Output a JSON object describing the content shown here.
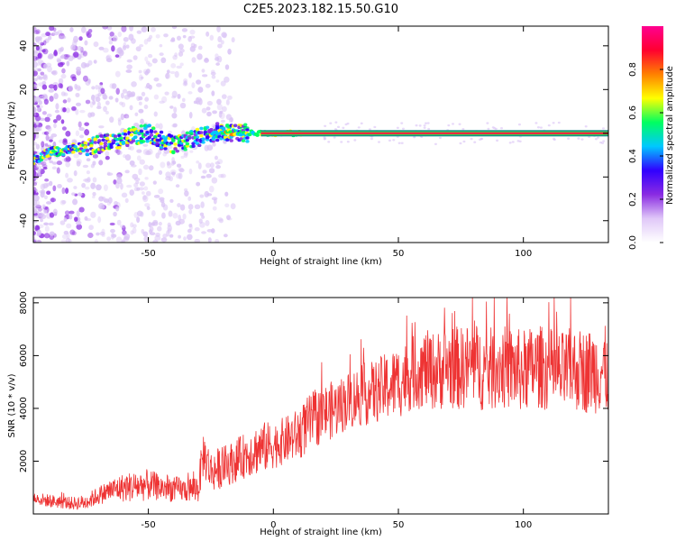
{
  "title": "C2E5.2023.182.15.50.G10",
  "colors": {
    "snr_line": "#ee3333",
    "axes": "#000000",
    "background": "#ffffff"
  },
  "chart_data": [
    {
      "type": "heatmap",
      "xlabel": "Height of straight line (km)",
      "ylabel": "Frequency (Hz)",
      "xlim": [
        -96,
        134
      ],
      "ylim": [
        -50,
        49
      ],
      "x_ticks": [
        -50,
        0,
        50,
        100
      ],
      "x_tick_labels": [
        "-50",
        "0",
        "50",
        "100"
      ],
      "y_ticks": [
        -40,
        -20,
        0,
        20,
        40
      ],
      "y_tick_labels": [
        "-40",
        "-20",
        "0",
        "20",
        "40"
      ],
      "grid": false,
      "colorbar": {
        "label": "Normalized spectral amplitude",
        "range": [
          0,
          1
        ],
        "ticks": [
          0.0,
          0.2,
          0.4,
          0.6,
          0.8
        ],
        "tick_labels": [
          "0.0",
          "0.2",
          "0.4",
          "0.6",
          "0.8"
        ],
        "colormap": [
          "#ffffff",
          "#e0c8f8",
          "#8a2be2",
          "#3000ff",
          "#00c8ff",
          "#00ff60",
          "#ffff00",
          "#ff8000",
          "#ff0030",
          "#ff0090"
        ]
      },
      "ridge": [
        {
          "x": -96,
          "y": -12
        },
        {
          "x": -92,
          "y": -10
        },
        {
          "x": -88,
          "y": -8
        },
        {
          "x": -85,
          "y": -9
        },
        {
          "x": -80,
          "y": -7
        },
        {
          "x": -75,
          "y": -6
        },
        {
          "x": -70,
          "y": -5
        },
        {
          "x": -65,
          "y": -4
        },
        {
          "x": -60,
          "y": -2
        },
        {
          "x": -55,
          "y": -1
        },
        {
          "x": -50,
          "y": 0
        },
        {
          "x": -45,
          "y": -3
        },
        {
          "x": -40,
          "y": -5
        },
        {
          "x": -35,
          "y": -4
        },
        {
          "x": -30,
          "y": -2
        },
        {
          "x": -25,
          "y": 0
        },
        {
          "x": -20,
          "y": 1
        },
        {
          "x": -15,
          "y": 0
        },
        {
          "x": -10,
          "y": 0
        },
        {
          "x": 0,
          "y": 0
        },
        {
          "x": 10,
          "y": 0
        },
        {
          "x": 20,
          "y": 0
        },
        {
          "x": 50,
          "y": 0
        },
        {
          "x": 100,
          "y": 0
        },
        {
          "x": 134,
          "y": 0
        }
      ]
    },
    {
      "type": "line",
      "xlabel": "Height of straight line (km)",
      "ylabel": "SNR (10 * v/v)",
      "xlim": [
        -96,
        134
      ],
      "ylim": [
        0,
        8200
      ],
      "x_ticks": [
        -50,
        0,
        50,
        100
      ],
      "x_tick_labels": [
        "-50",
        "0",
        "50",
        "100"
      ],
      "y_ticks": [
        2000,
        4000,
        6000,
        8000
      ],
      "y_tick_labels": [
        "2000",
        "4000",
        "6000",
        "8000"
      ],
      "grid": false,
      "series": [
        {
          "color": "#ee3333",
          "x": [
            -96,
            -90,
            -85,
            -80,
            -75,
            -70,
            -65,
            -60,
            -55,
            -50,
            -45,
            -40,
            -35,
            -30,
            -28,
            -25,
            -20,
            -15,
            -10,
            -5,
            0,
            5,
            10,
            15,
            20,
            25,
            30,
            35,
            40,
            45,
            50,
            55,
            60,
            65,
            70,
            75,
            80,
            85,
            90,
            95,
            100,
            105,
            110,
            115,
            120,
            125,
            130,
            134
          ],
          "y": [
            600,
            500,
            450,
            400,
            450,
            700,
            900,
            1000,
            1050,
            1100,
            1000,
            950,
            900,
            1000,
            2300,
            1600,
            1800,
            2000,
            2300,
            2500,
            2600,
            2800,
            3000,
            3500,
            3800,
            4000,
            4300,
            4500,
            4600,
            4800,
            5000,
            5300,
            5500,
            5400,
            5600,
            5500,
            5700,
            5400,
            5600,
            5500,
            5400,
            5600,
            5500,
            5300,
            5500,
            5400,
            5500,
            5400
          ],
          "spread": [
            250,
            250,
            250,
            250,
            300,
            350,
            450,
            550,
            600,
            600,
            500,
            500,
            450,
            600,
            900,
            800,
            800,
            800,
            900,
            1000,
            900,
            900,
            1000,
            1100,
            1100,
            1100,
            1100,
            1200,
            1200,
            1300,
            1400,
            1400,
            1500,
            1500,
            1600,
            1600,
            1600,
            1600,
            1600,
            1600,
            1600,
            1600,
            1600,
            1600,
            1600,
            1600,
            1700,
            1700
          ]
        }
      ]
    }
  ]
}
